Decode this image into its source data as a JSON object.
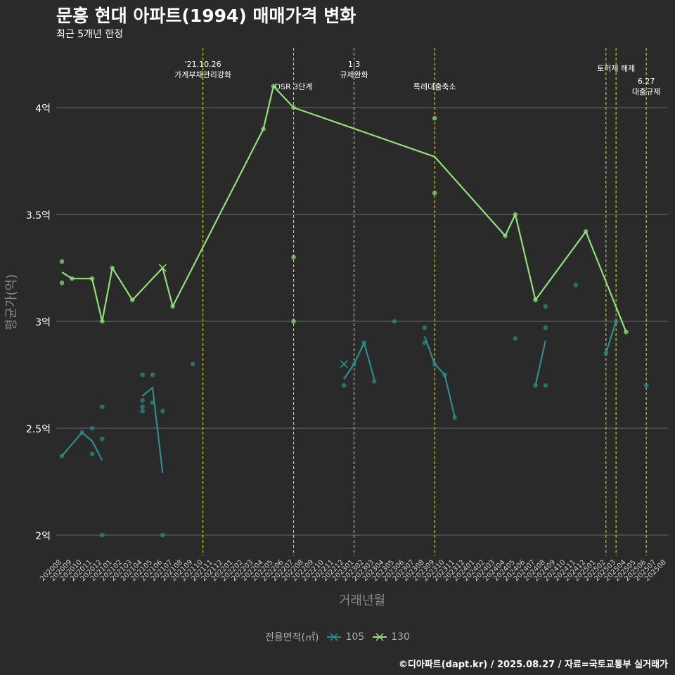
{
  "title": "문흥 현대 아파트(1994) 매매가격 변화",
  "subtitle": "최근 5개년 한정",
  "caption": "©디아파트(dapt.kr) / 2025.08.27 / 자료=국토교통부 실거래가",
  "colors": {
    "background": "#2b2a2a",
    "grid": "#6b6b6b",
    "event_line": "#e8e81f",
    "series_105": "#2a8f8a",
    "series_130": "#90e07a",
    "text": "#ffffff",
    "axis_label": "#888888"
  },
  "chart_data": {
    "type": "line",
    "title": "문흥 현대 아파트(1994) 매매가격 변화",
    "xlabel": "거래년월",
    "ylabel": "평균가(억)",
    "ylim": [
      1.9,
      4.3
    ],
    "yticks": [
      2,
      2.5,
      3,
      3.5,
      4
    ],
    "ytick_labels": [
      "2억",
      "2.5억",
      "3억",
      "3.5억",
      "4억"
    ],
    "categories": [
      "202008",
      "202009",
      "202010",
      "202011",
      "202012",
      "202101",
      "202102",
      "202103",
      "202104",
      "202105",
      "202106",
      "202107",
      "202108",
      "202109",
      "202110",
      "202111",
      "202112",
      "202201",
      "202202",
      "202203",
      "202204",
      "202205",
      "202206",
      "202207",
      "202208",
      "202209",
      "202210",
      "202211",
      "202212",
      "202301",
      "202302",
      "202303",
      "202304",
      "202305",
      "202306",
      "202307",
      "202308",
      "202309",
      "202310",
      "202311",
      "202312",
      "202401",
      "202402",
      "202403",
      "202404",
      "202405",
      "202406",
      "202407",
      "202408",
      "202409",
      "202410",
      "202411",
      "202412",
      "202501",
      "202502",
      "202503",
      "202504",
      "202505",
      "202506",
      "202507",
      "202508"
    ],
    "legend_title": "전용면적(㎡)",
    "series": [
      {
        "name": "105",
        "color": "#2a8f8a",
        "lines": [
          [
            [
              0,
              2.37
            ],
            [
              2,
              2.48
            ],
            [
              3,
              2.44
            ],
            [
              4,
              2.35
            ]
          ],
          [
            [
              8,
              2.65
            ],
            [
              9,
              2.69
            ],
            [
              10,
              2.29
            ]
          ],
          [
            [
              28,
              2.73
            ],
            [
              29,
              2.8
            ],
            [
              30,
              2.9
            ],
            [
              31,
              2.73
            ]
          ],
          [
            [
              36,
              2.93
            ],
            [
              37,
              2.8
            ],
            [
              38,
              2.75
            ],
            [
              39,
              2.55
            ]
          ],
          [
            [
              47,
              2.7
            ],
            [
              48,
              2.91
            ]
          ],
          [
            [
              54,
              2.85
            ],
            [
              55,
              3.0
            ]
          ]
        ],
        "points": [
          [
            0,
            2.37
          ],
          [
            2,
            2.48
          ],
          [
            3,
            2.5
          ],
          [
            3,
            2.38
          ],
          [
            4,
            2.6
          ],
          [
            4,
            2.45
          ],
          [
            4,
            2.0
          ],
          [
            8,
            2.75
          ],
          [
            8,
            2.63
          ],
          [
            8,
            2.6
          ],
          [
            8,
            2.58
          ],
          [
            9,
            2.75
          ],
          [
            9,
            2.62
          ],
          [
            10,
            2.58
          ],
          [
            10,
            2.0
          ],
          [
            13,
            2.8
          ],
          [
            28,
            2.7
          ],
          [
            29,
            2.8
          ],
          [
            30,
            2.9
          ],
          [
            31,
            2.72
          ],
          [
            33,
            3.0
          ],
          [
            36,
            2.97
          ],
          [
            36,
            2.9
          ],
          [
            37,
            2.8
          ],
          [
            38,
            2.75
          ],
          [
            39,
            2.55
          ],
          [
            45,
            2.92
          ],
          [
            47,
            2.7
          ],
          [
            48,
            3.07
          ],
          [
            48,
            2.97
          ],
          [
            48,
            2.7
          ],
          [
            51,
            3.17
          ],
          [
            54,
            2.85
          ],
          [
            55,
            3.0
          ],
          [
            58,
            2.7
          ]
        ],
        "x_markers": [
          [
            10,
            3.25
          ],
          [
            28,
            2.8
          ]
        ]
      },
      {
        "name": "130",
        "color": "#90e07a",
        "lines": [
          [
            [
              0,
              3.23
            ],
            [
              1,
              3.2
            ],
            [
              3,
              3.2
            ],
            [
              4,
              3.0
            ],
            [
              5,
              3.25
            ],
            [
              7,
              3.1
            ],
            [
              10,
              3.25
            ],
            [
              11,
              3.07
            ],
            [
              20,
              3.9
            ],
            [
              21,
              4.1
            ],
            [
              23,
              4.0
            ],
            [
              37,
              3.77
            ],
            [
              44,
              3.4
            ],
            [
              45,
              3.5
            ],
            [
              47,
              3.1
            ],
            [
              52,
              3.42
            ],
            [
              56,
              2.95
            ]
          ]
        ],
        "points": [
          [
            0,
            3.28
          ],
          [
            0,
            3.18
          ],
          [
            1,
            3.2
          ],
          [
            3,
            3.2
          ],
          [
            4,
            3.0
          ],
          [
            5,
            3.25
          ],
          [
            7,
            3.1
          ],
          [
            11,
            3.07
          ],
          [
            20,
            3.9
          ],
          [
            21,
            4.1
          ],
          [
            23,
            4.0
          ],
          [
            23,
            3.3
          ],
          [
            23,
            3.0
          ],
          [
            37,
            3.95
          ],
          [
            37,
            3.6
          ],
          [
            44,
            3.4
          ],
          [
            45,
            3.5
          ],
          [
            47,
            3.1
          ],
          [
            52,
            3.42
          ],
          [
            56,
            2.95
          ]
        ],
        "x_markers": [
          [
            10,
            3.25
          ]
        ]
      }
    ],
    "events": [
      {
        "x": 14,
        "label": "'21.10.26 가계부채관리강화",
        "lines": [
          "'21.10.26",
          "가계부채관리강화"
        ]
      },
      {
        "x": 23,
        "label": "DSR 3단계",
        "lines": [
          "DSR 3단계"
        ]
      },
      {
        "x": 29,
        "label": "1.3 규제완화",
        "lines": [
          "1.3",
          "규제완화"
        ]
      },
      {
        "x": 37,
        "label": "특례대출축소",
        "lines": [
          "특례대출축소"
        ]
      },
      {
        "x": 54,
        "label": "",
        "lines": []
      },
      {
        "x": 55,
        "label": "토허제 해제",
        "lines": [
          "토허제 해제"
        ]
      },
      {
        "x": 58,
        "label": "6.27 대출규제",
        "lines": [
          "6.27",
          "대출규제"
        ]
      }
    ]
  }
}
